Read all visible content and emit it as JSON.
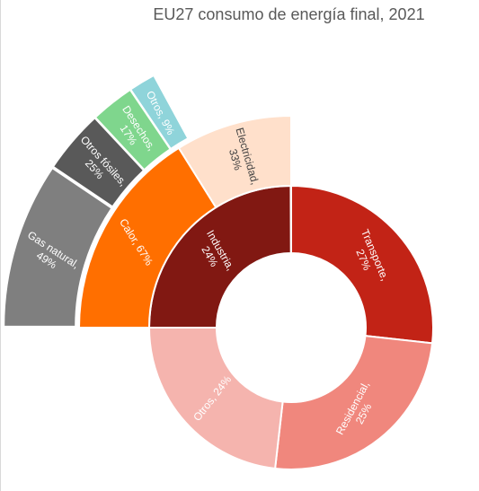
{
  "chart_data": {
    "type": "sunburst",
    "title": "EU27 consumo de energía final, 2021",
    "rings": [
      {
        "ring": "inner",
        "segments": [
          {
            "label": "Transporte,",
            "value": "27%",
            "color": "#c22316"
          },
          {
            "label": "Residencial,",
            "value": "25%",
            "color": "#f0877d"
          },
          {
            "label": "Otros, 24%",
            "value": "",
            "color": "#f5b4ae"
          },
          {
            "label": "Industria,",
            "value": "24%",
            "color": "#811812"
          }
        ]
      },
      {
        "ring": "middle",
        "parent": "Industria",
        "segments": [
          {
            "label": "Calor, 67%",
            "value": "",
            "color": "#ff6f00"
          },
          {
            "label": "Electricidad,",
            "value": "33%",
            "color": "#ffe0cb"
          }
        ]
      },
      {
        "ring": "outer",
        "parent": "Calor",
        "segments": [
          {
            "label": "Gas natural,",
            "value": "49%",
            "color": "#7f7f7f"
          },
          {
            "label": "Otros fósiles,",
            "value": "25%",
            "color": "#595959"
          },
          {
            "label": "Desechos,",
            "value": "17%",
            "color": "#7fd68d"
          },
          {
            "label": "Otros, 9%",
            "value": "",
            "color": "#8fd4da"
          }
        ]
      }
    ]
  }
}
